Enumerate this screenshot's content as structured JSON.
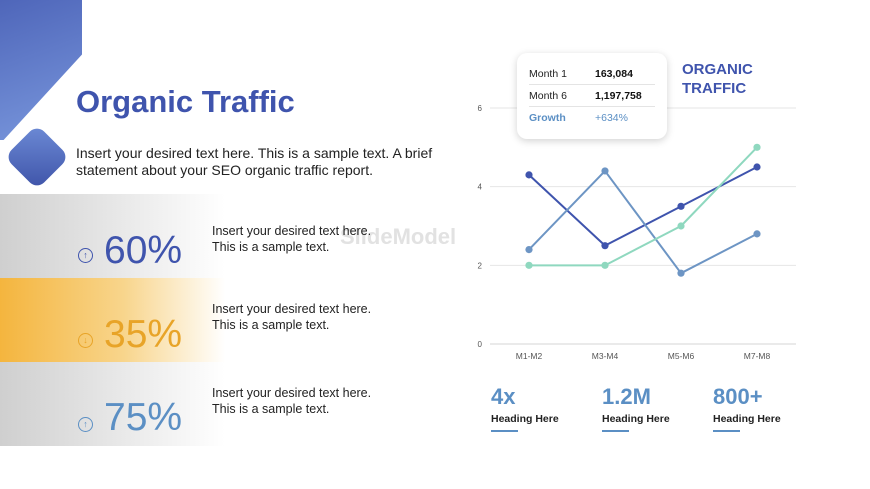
{
  "slide": {
    "title": "Organic Traffic",
    "subtitle": "Insert your desired text here. This is a sample text. A brief statement about your SEO organic traffic report.",
    "watermark": "SlideModel"
  },
  "stats": [
    {
      "value": "60%",
      "icon": "arrow-up-circle-icon",
      "color": "#3f54ad",
      "desc1": "Insert your desired text here.",
      "desc2": "This is a sample text."
    },
    {
      "value": "35%",
      "icon": "arrow-down-circle-icon",
      "color": "#e8a428",
      "desc1": "Insert your desired text here.",
      "desc2": "This is a sample text."
    },
    {
      "value": "75%",
      "icon": "arrow-up-circle-icon",
      "color": "#5b8fc4",
      "desc1": "Insert your desired text here.",
      "desc2": "This is a sample text."
    }
  ],
  "tooltip": {
    "rows": [
      {
        "key": "Month 1",
        "value": "163,084"
      },
      {
        "key": "Month 6",
        "value": "1,197,758"
      },
      {
        "key": "Growth",
        "value": "+634%"
      }
    ]
  },
  "chart_heading": {
    "line1": "ORGANIC",
    "line2": "TRAFFIC"
  },
  "chart_data": {
    "type": "line",
    "categories": [
      "M1-M2",
      "M3-M4",
      "M5-M6",
      "M7-M8"
    ],
    "ylim": [
      0,
      6
    ],
    "yticks": [
      0,
      2,
      4,
      6
    ],
    "grid": true,
    "series": [
      {
        "values": [
          4.3,
          2.5,
          3.5,
          4.5
        ],
        "color": "#3f54ad"
      },
      {
        "values": [
          2.4,
          4.4,
          1.8,
          2.8
        ],
        "color": "#6d95c4"
      },
      {
        "values": [
          2.0,
          2.0,
          3.0,
          5.0
        ],
        "color": "#8fd8bf"
      }
    ]
  },
  "kpis": [
    {
      "value": "4x",
      "label": "Heading Here"
    },
    {
      "value": "1.2M",
      "label": "Heading Here"
    },
    {
      "value": "800+",
      "label": "Heading Here"
    }
  ]
}
